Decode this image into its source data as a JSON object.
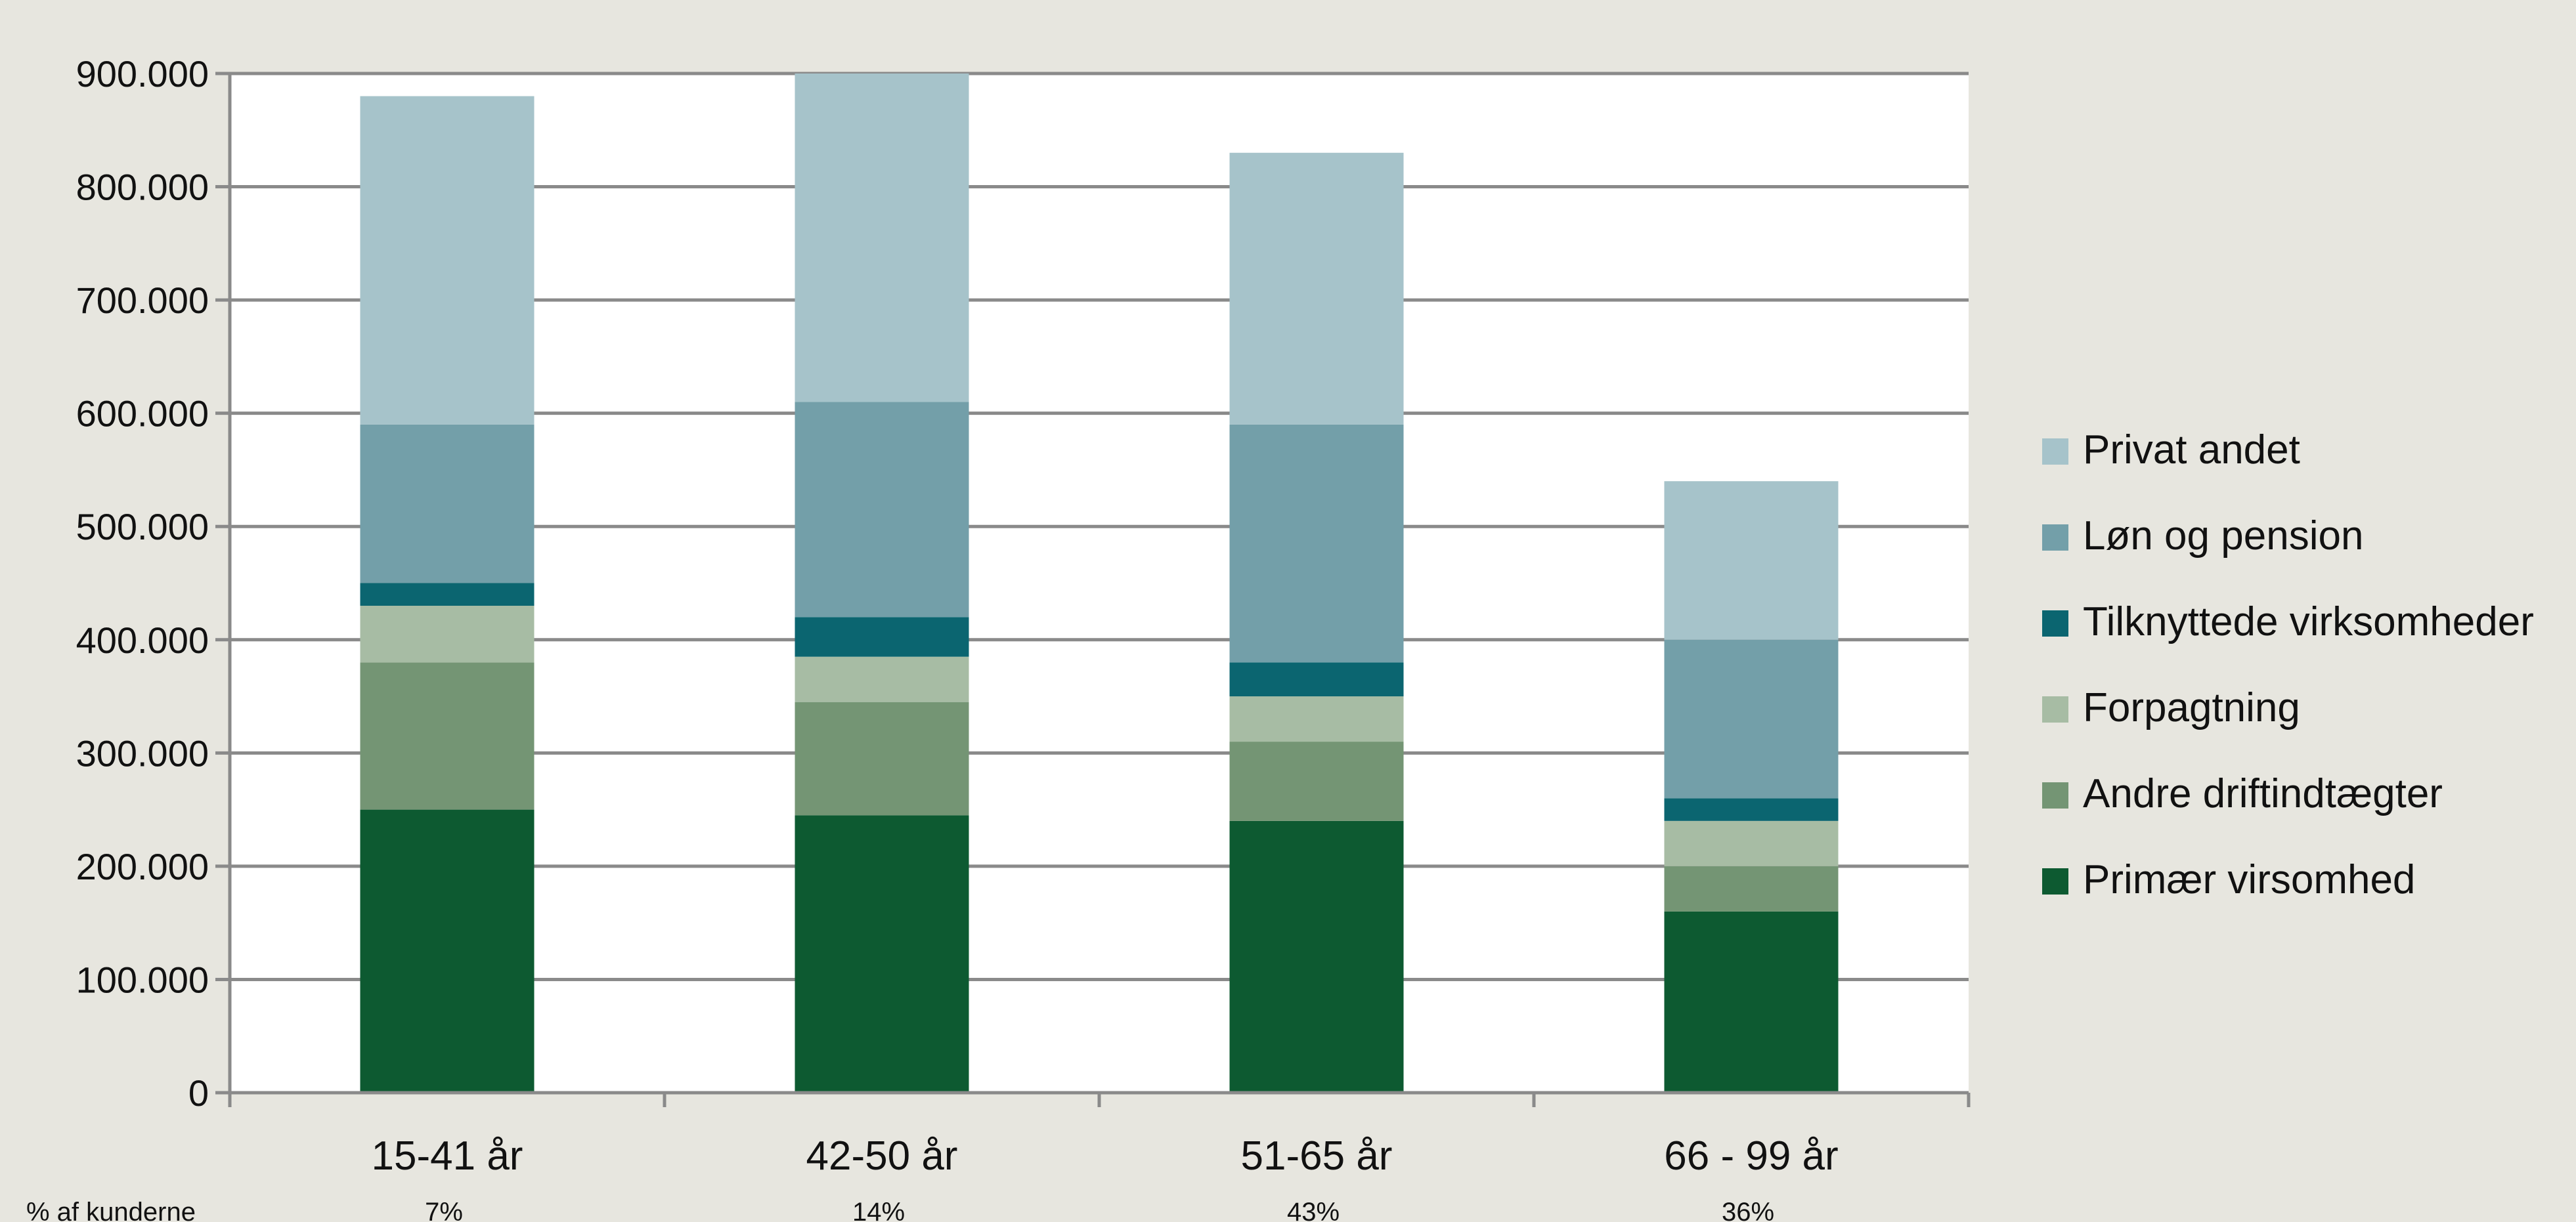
{
  "chart_data": {
    "type": "bar",
    "stacked": true,
    "categories": [
      "15-41 år",
      "42-50 år",
      "51-65 år",
      "66 - 99 år"
    ],
    "series": [
      {
        "name": "Primær virsomhed",
        "color": "#0d5a31",
        "values": [
          250000,
          245000,
          240000,
          160000
        ]
      },
      {
        "name": "Andre driftindtægter",
        "color": "#749574",
        "values": [
          130000,
          100000,
          70000,
          40000
        ]
      },
      {
        "name": "Forpagtning",
        "color": "#a7bca4",
        "values": [
          50000,
          40000,
          40000,
          40000
        ]
      },
      {
        "name": "Tilknyttede virksomheder",
        "color": "#0b6570",
        "values": [
          20000,
          35000,
          30000,
          20000
        ]
      },
      {
        "name": "Løn og pension",
        "color": "#739fa9",
        "values": [
          140000,
          190000,
          210000,
          140000
        ]
      },
      {
        "name": "Privat andet",
        "color": "#a6c3ca",
        "values": [
          290000,
          290000,
          240000,
          140000
        ]
      }
    ],
    "ylim": [
      0,
      900000
    ],
    "yticks": [
      "0",
      "100.000",
      "200.000",
      "300.000",
      "400.000",
      "500.000",
      "600.000",
      "700.000",
      "800.000",
      "900.000"
    ],
    "grid": true,
    "legend_position": "right",
    "footer_label": "% af kunderne",
    "footer_values": [
      "7%",
      "14%",
      "43%",
      "36%"
    ]
  }
}
